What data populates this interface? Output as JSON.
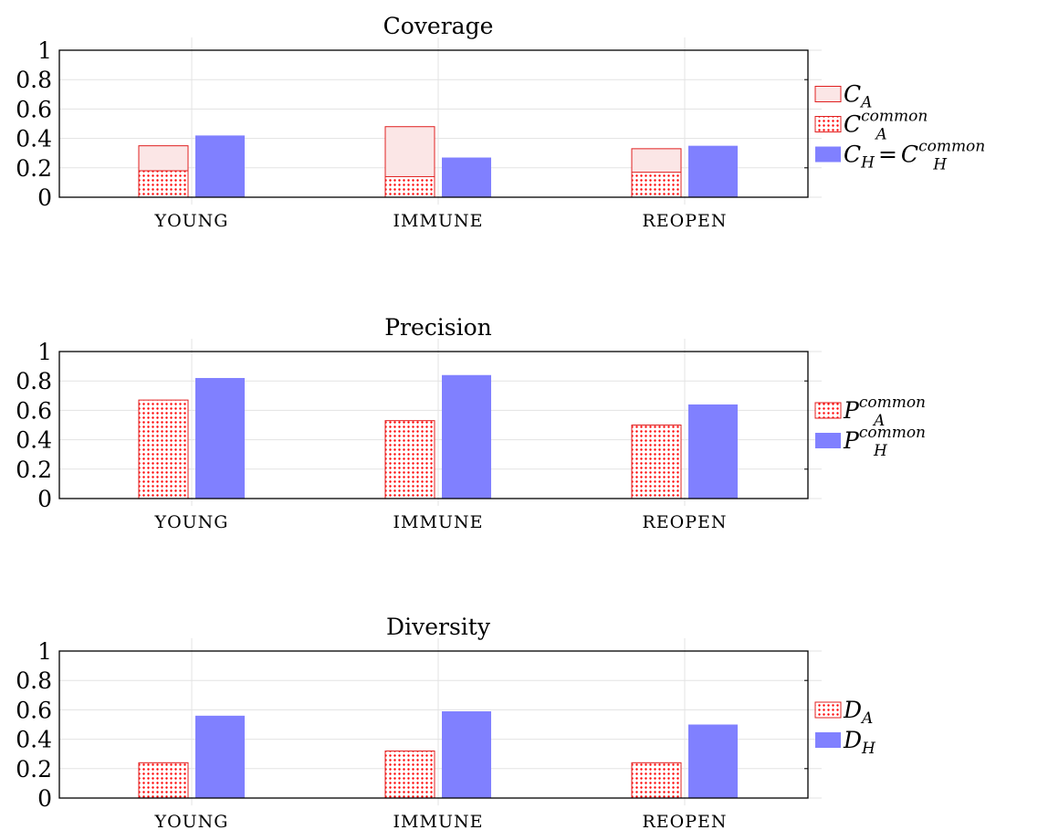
{
  "colors": {
    "a_light_fill": "#fbe6e6",
    "a_stroke": "#e02020",
    "a_dot": "#ff0000",
    "h_fill": "#8080ff",
    "grid": "#e3e3e3"
  },
  "chart_data": [
    {
      "type": "bar",
      "title": "Coverage",
      "categories": [
        "YOUNG",
        "IMMUNE",
        "REOPEN"
      ],
      "ylim": [
        0,
        1
      ],
      "yticks": [
        "0",
        "0.2",
        "0.4",
        "0.6",
        "0.8",
        "1"
      ],
      "grid": true,
      "legend_position": "right",
      "series": [
        {
          "name": "C_A",
          "legend": {
            "main": "C",
            "sub": "A",
            "sup": "",
            "rhs_main": "",
            "rhs_sub": "",
            "rhs_sup": ""
          },
          "style": "light",
          "values": [
            0.35,
            0.48,
            0.33
          ]
        },
        {
          "name": "C_A^common",
          "legend": {
            "main": "C",
            "sub": "A",
            "sup": "common",
            "rhs_main": "",
            "rhs_sub": "",
            "rhs_sup": ""
          },
          "style": "dots",
          "overlay": true,
          "values": [
            0.18,
            0.14,
            0.17
          ]
        },
        {
          "name": "C_H = C_H^common",
          "legend": {
            "main": "C",
            "sub": "H",
            "sup": "",
            "rhs_main": "C",
            "rhs_sub": "H",
            "rhs_sup": "common"
          },
          "style": "solid",
          "values": [
            0.42,
            0.27,
            0.35
          ]
        }
      ]
    },
    {
      "type": "bar",
      "title": "Precision",
      "categories": [
        "YOUNG",
        "IMMUNE",
        "REOPEN"
      ],
      "ylim": [
        0,
        1
      ],
      "yticks": [
        "0",
        "0.2",
        "0.4",
        "0.6",
        "0.8",
        "1"
      ],
      "grid": true,
      "legend_position": "right",
      "series": [
        {
          "name": "P_A^common",
          "legend": {
            "main": "P",
            "sub": "A",
            "sup": "common",
            "rhs_main": "",
            "rhs_sub": "",
            "rhs_sup": ""
          },
          "style": "dots",
          "values": [
            0.67,
            0.53,
            0.5
          ]
        },
        {
          "name": "P_H^common",
          "legend": {
            "main": "P",
            "sub": "H",
            "sup": "common",
            "rhs_main": "",
            "rhs_sub": "",
            "rhs_sup": ""
          },
          "style": "solid",
          "values": [
            0.82,
            0.84,
            0.64
          ]
        }
      ]
    },
    {
      "type": "bar",
      "title": "Diversity",
      "categories": [
        "YOUNG",
        "IMMUNE",
        "REOPEN"
      ],
      "ylim": [
        0,
        1
      ],
      "yticks": [
        "0",
        "0.2",
        "0.4",
        "0.6",
        "0.8",
        "1"
      ],
      "grid": true,
      "legend_position": "right",
      "series": [
        {
          "name": "D_A",
          "legend": {
            "main": "D",
            "sub": "A",
            "sup": "",
            "rhs_main": "",
            "rhs_sub": "",
            "rhs_sup": ""
          },
          "style": "dots",
          "values": [
            0.24,
            0.32,
            0.24
          ]
        },
        {
          "name": "D_H",
          "legend": {
            "main": "D",
            "sub": "H",
            "sup": "",
            "rhs_main": "",
            "rhs_sub": "",
            "rhs_sup": ""
          },
          "style": "solid",
          "values": [
            0.56,
            0.59,
            0.5
          ]
        }
      ]
    }
  ]
}
